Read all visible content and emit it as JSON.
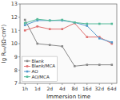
{
  "chart_data": {
    "type": "line",
    "x_label": "Immersion time",
    "y_label": "lg Rₚₒ/(Ω·cm²)",
    "categories": [
      "1h",
      "1d",
      "2d",
      "4d",
      "8d",
      "16d",
      "32d",
      "64d"
    ],
    "series": [
      {
        "name": "Blank",
        "color": "#888888",
        "marker": "square",
        "line_style": "solid",
        "values": [
          11.8,
          10.0,
          9.9,
          9.8,
          8.3,
          8.4,
          8.4,
          8.4
        ]
      },
      {
        "name": "Blank/MCA",
        "color": "#e07070",
        "marker": "square",
        "line_style": "solid",
        "values": [
          11.0,
          11.3,
          11.1,
          11.1,
          11.55,
          10.5,
          10.5,
          10.0
        ]
      },
      {
        "name": "AO",
        "color": "#5599cc",
        "marker": "square",
        "line_style": "solid",
        "values": [
          11.4,
          11.75,
          11.75,
          11.75,
          11.6,
          11.35,
          10.4,
          10.1
        ]
      },
      {
        "name": "AO/MCA",
        "color": "#55bb99",
        "marker": "square",
        "line_style": "solid",
        "values": [
          11.55,
          11.85,
          11.75,
          11.8,
          11.6,
          11.5,
          11.5,
          11.5
        ]
      }
    ],
    "ylim": [
      7,
      13
    ],
    "yticks": [
      7,
      8,
      9,
      10,
      11,
      12,
      13
    ],
    "grid": false,
    "legend": "lower left"
  }
}
